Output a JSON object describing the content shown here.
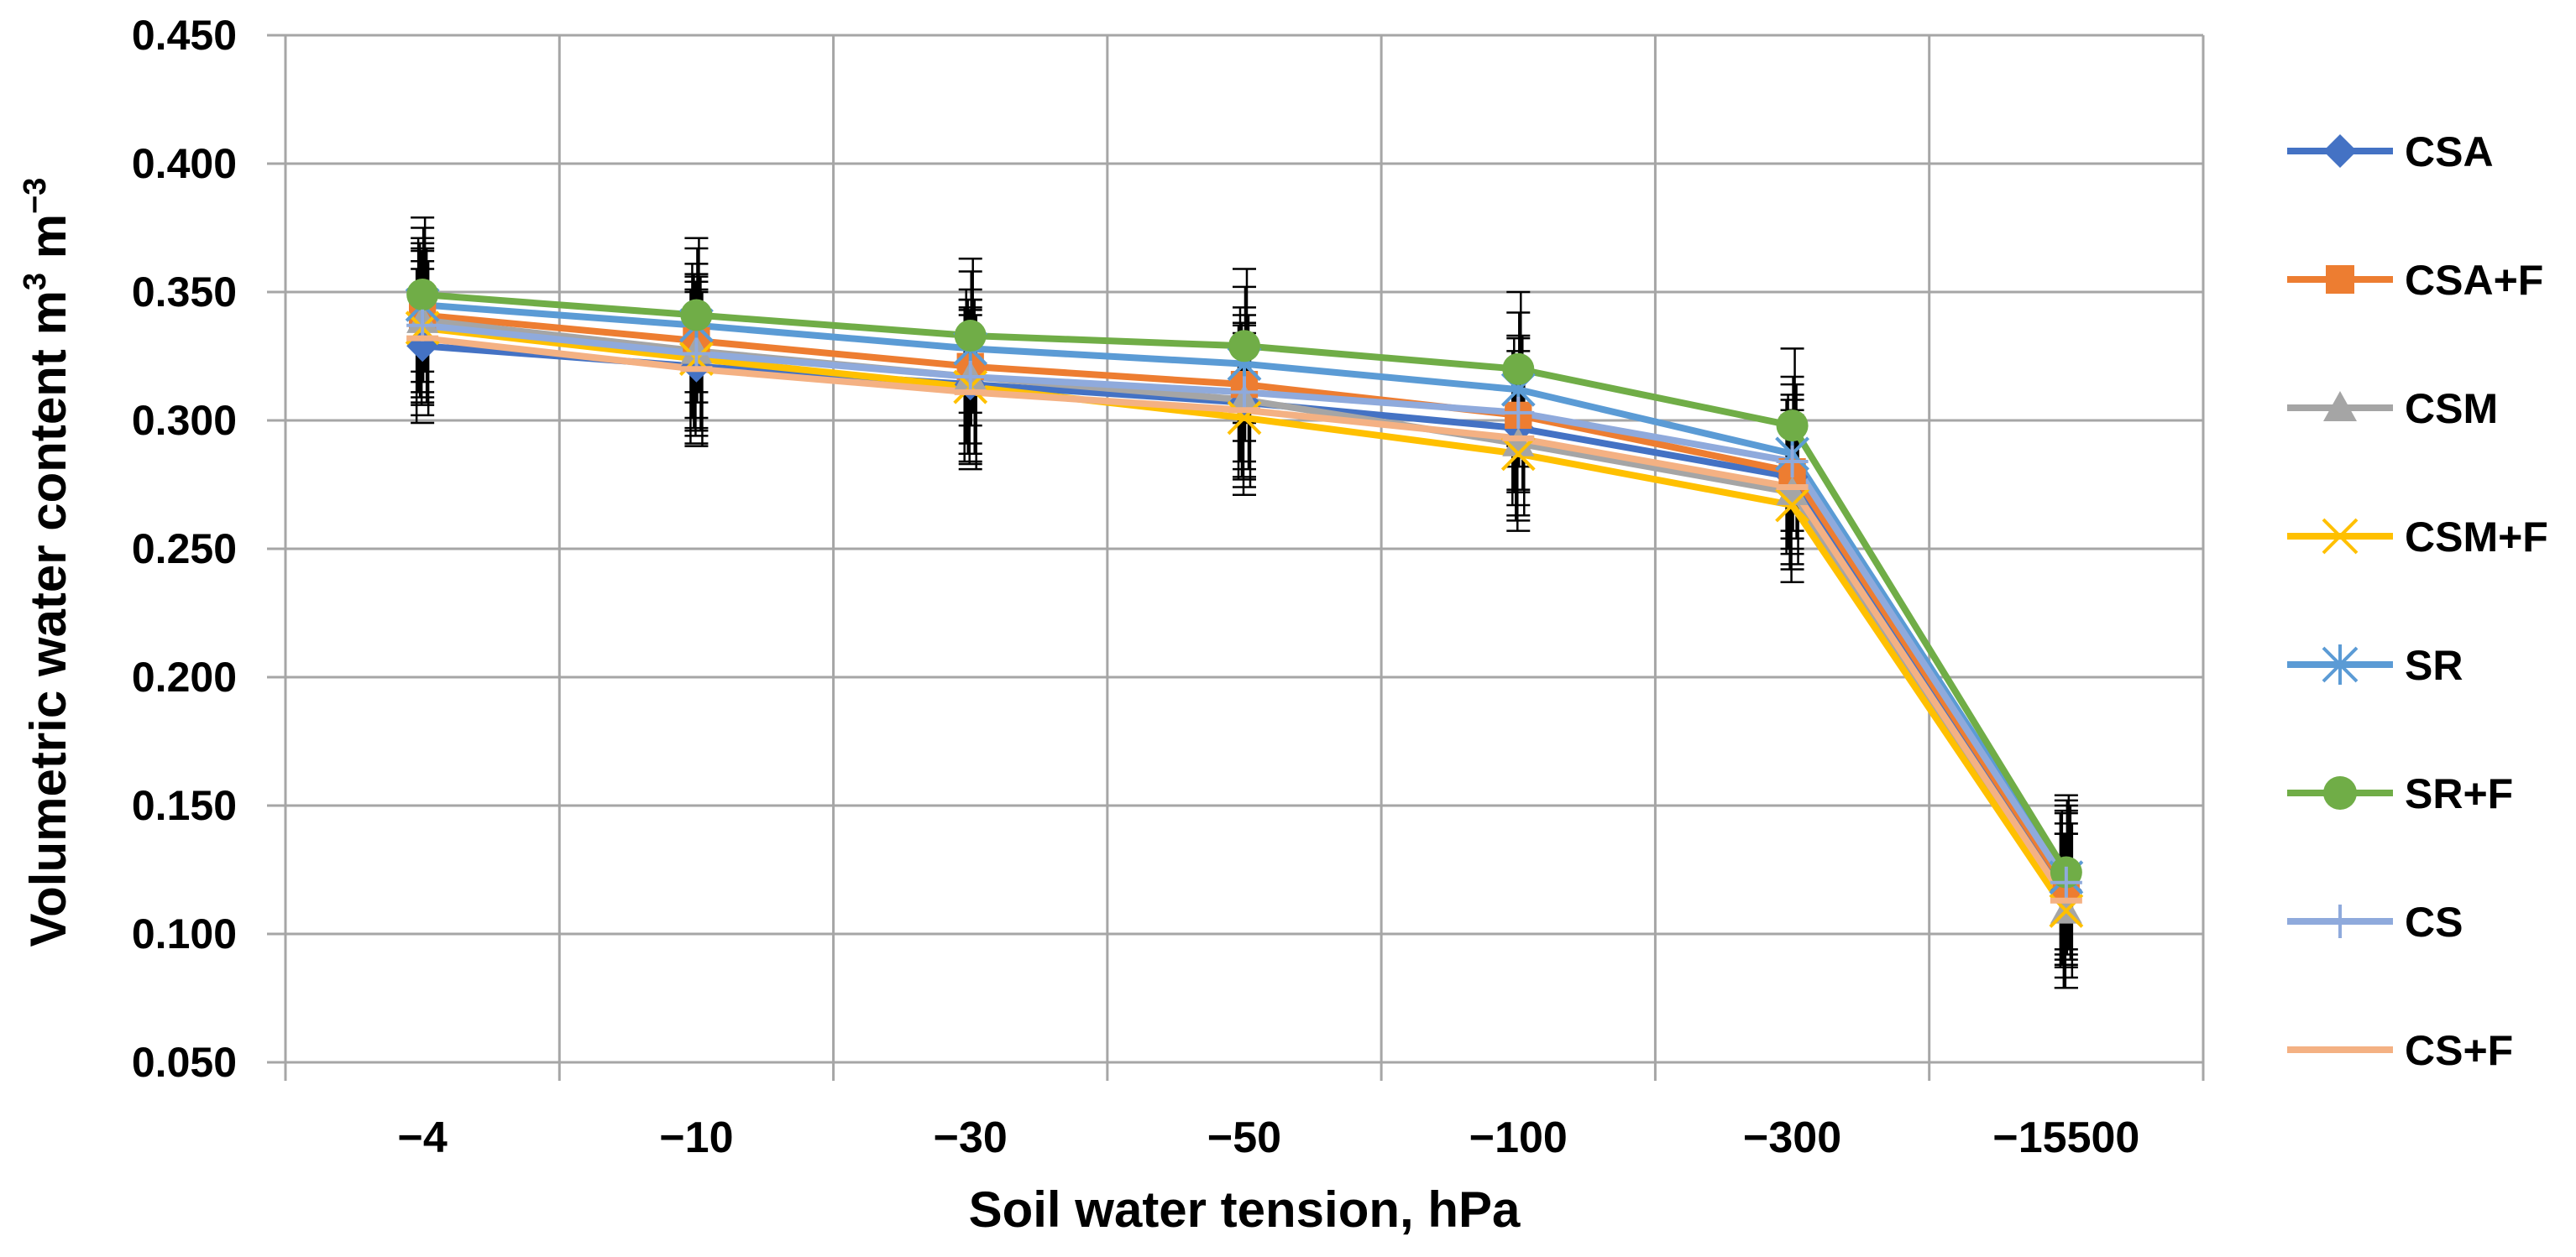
{
  "chart_data": {
    "type": "line",
    "xlabel": "Soil water tension, hPa",
    "ylabel": {
      "base": "Volumetric water content m",
      "sup1": "3",
      "mid": " m",
      "sup2": "−3"
    },
    "categories": [
      "−4",
      "−10",
      "−30",
      "−50",
      "−100",
      "−300",
      "−15500"
    ],
    "ylim": [
      0.05,
      0.45
    ],
    "yticks": [
      "0.450",
      "0.400",
      "0.350",
      "0.300",
      "0.250",
      "0.200",
      "0.150",
      "0.100",
      "0.050"
    ],
    "ytick_values": [
      0.45,
      0.4,
      0.35,
      0.3,
      0.25,
      0.2,
      0.15,
      0.1,
      0.05
    ],
    "grid": true,
    "legend_position": "right",
    "error_bar_half_width": 0.03,
    "error_bar_color": "#000000",
    "series": [
      {
        "name": "CSA",
        "color": "#4472C4",
        "marker": "diamond",
        "values": [
          0.329,
          0.321,
          0.314,
          0.307,
          0.297,
          0.278,
          0.117
        ]
      },
      {
        "name": "CSA+F",
        "color": "#ED7D31",
        "marker": "square",
        "values": [
          0.341,
          0.331,
          0.321,
          0.314,
          0.302,
          0.28,
          0.118
        ]
      },
      {
        "name": "CSM",
        "color": "#A5A5A5",
        "marker": "triangle",
        "values": [
          0.339,
          0.327,
          0.317,
          0.308,
          0.291,
          0.272,
          0.109
        ]
      },
      {
        "name": "CSM+F",
        "color": "#FFC000",
        "marker": "x",
        "values": [
          0.336,
          0.324,
          0.313,
          0.301,
          0.287,
          0.267,
          0.109
        ]
      },
      {
        "name": "SR",
        "color": "#5B9BD5",
        "marker": "star",
        "values": [
          0.345,
          0.337,
          0.328,
          0.322,
          0.312,
          0.287,
          0.122
        ]
      },
      {
        "name": "SR+F",
        "color": "#70AD47",
        "marker": "circle",
        "values": [
          0.349,
          0.341,
          0.333,
          0.329,
          0.32,
          0.298,
          0.124
        ]
      },
      {
        "name": "CS",
        "color": "#8FAADC",
        "marker": "plus",
        "values": [
          0.337,
          0.326,
          0.317,
          0.311,
          0.303,
          0.284,
          0.12
        ]
      },
      {
        "name": "CS+F",
        "color": "#F4B183",
        "marker": "dash",
        "values": [
          0.332,
          0.32,
          0.311,
          0.304,
          0.293,
          0.274,
          0.113
        ]
      }
    ]
  }
}
